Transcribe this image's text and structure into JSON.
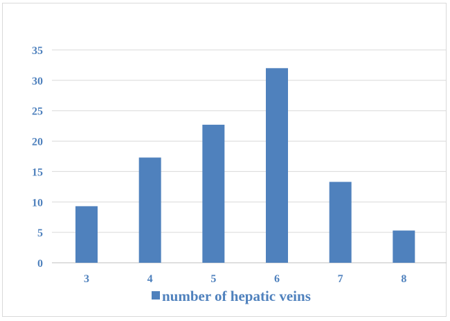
{
  "chart_data": {
    "type": "bar",
    "title": "",
    "xlabel": "",
    "ylabel": "",
    "categories": [
      "3",
      "4",
      "5",
      "6",
      "7",
      "8"
    ],
    "series": [
      {
        "name": "number of hepatic veins",
        "values": [
          9.3,
          17.3,
          22.7,
          32,
          13.3,
          5.3
        ]
      }
    ],
    "ylim": [
      0,
      35
    ],
    "yticks": [
      0,
      5,
      10,
      15,
      20,
      25,
      30,
      35
    ],
    "grid": true,
    "legend_position": "bottom",
    "colors": {
      "bar": "#4f81bd",
      "text": "#4f81bd",
      "grid": "#d9d9d9",
      "axis": "#bfbfbf"
    }
  }
}
